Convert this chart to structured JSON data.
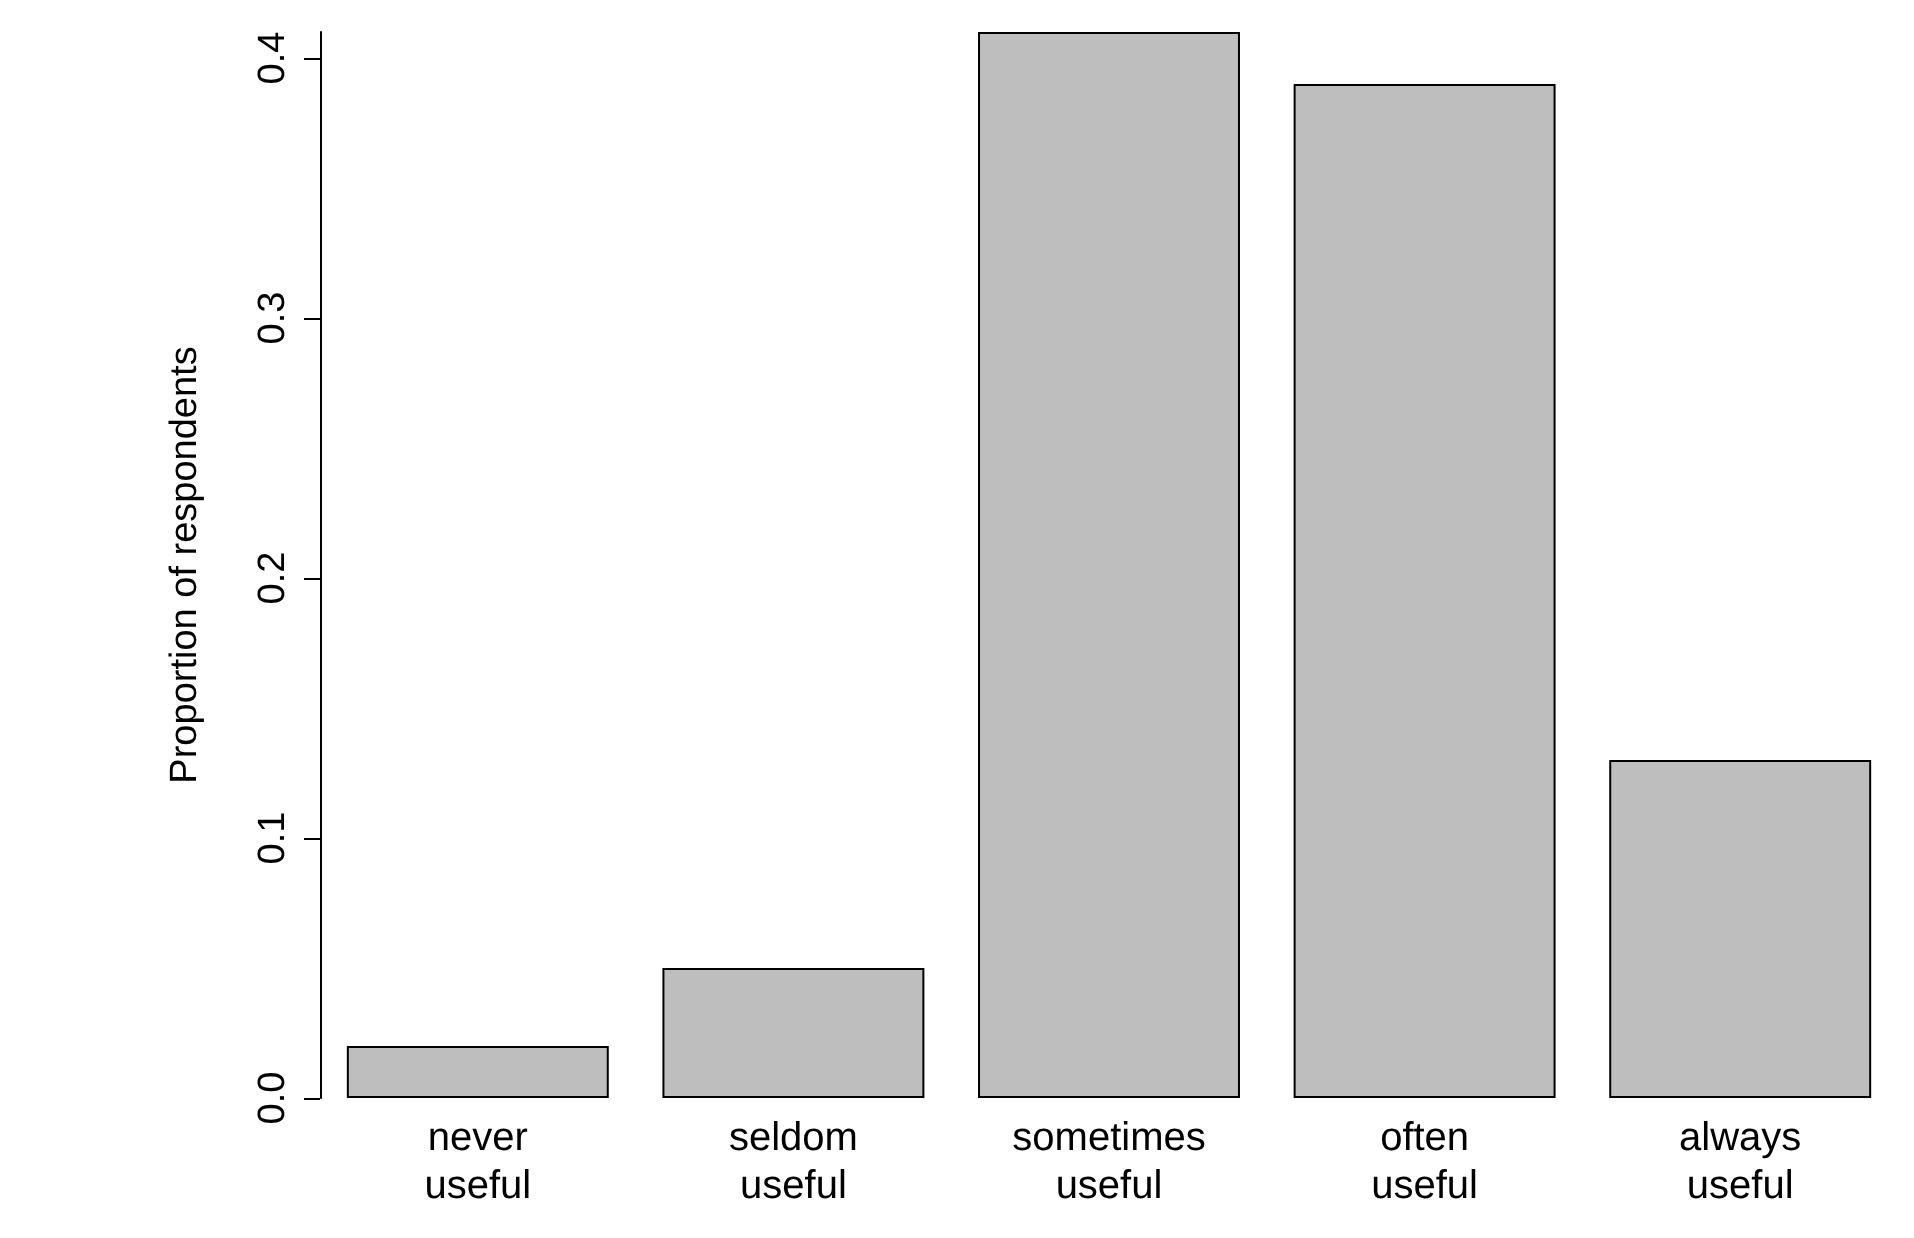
{
  "chart_data": {
    "type": "bar",
    "categories": [
      "never\nuseful",
      "seldom\nuseful",
      "sometimes\nuseful",
      "often\nuseful",
      "always\nuseful"
    ],
    "values": [
      0.02,
      0.05,
      0.41,
      0.39,
      0.13
    ],
    "color": "#bebebe",
    "ylabel": "Proportion of respondents",
    "ylim": [
      0,
      0.41
    ],
    "yticks": [
      {
        "value": 0,
        "label": "0.0"
      },
      {
        "value": 0.1,
        "label": "0.1"
      },
      {
        "value": 0.2,
        "label": "0.2"
      },
      {
        "value": 0.3,
        "label": "0.3"
      },
      {
        "value": 0.4,
        "label": "0.4"
      }
    ],
    "grid": false
  }
}
